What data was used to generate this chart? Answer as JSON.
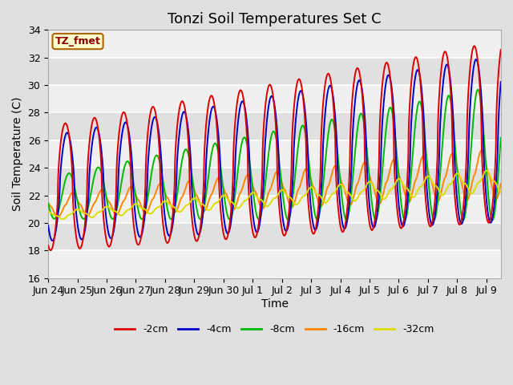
{
  "title": "Tonzi Soil Temperatures Set C",
  "xlabel": "Time",
  "ylabel": "Soil Temperature (C)",
  "ylim": [
    16,
    34
  ],
  "x_tick_labels": [
    "Jun 24",
    "Jun 25",
    "Jun 26",
    "Jun 27",
    "Jun 28",
    "Jun 29",
    "Jun 30",
    "Jul 1",
    "Jul 2",
    "Jul 3",
    "Jul 4",
    "Jul 5",
    "Jul 6",
    "Jul 7",
    "Jul 8",
    "Jul 9"
  ],
  "colors": {
    "-2cm": "#dd0000",
    "-4cm": "#0000cc",
    "-8cm": "#00bb00",
    "-16cm": "#ff8800",
    "-32cm": "#dddd00"
  },
  "label_box_text": "TZ_fmet",
  "label_box_bg": "#ffffcc",
  "label_box_text_color": "#880000",
  "label_box_edge_color": "#aa6600",
  "bg_color": "#e0e0e0",
  "plot_bg_color": "#e8e8e8",
  "grid_color": "#ffffff",
  "band_color_light": "#f0f0f0",
  "band_color_dark": "#e0e0e0",
  "title_fontsize": 13,
  "axis_label_fontsize": 10,
  "tick_fontsize": 9,
  "linewidth": 1.4
}
